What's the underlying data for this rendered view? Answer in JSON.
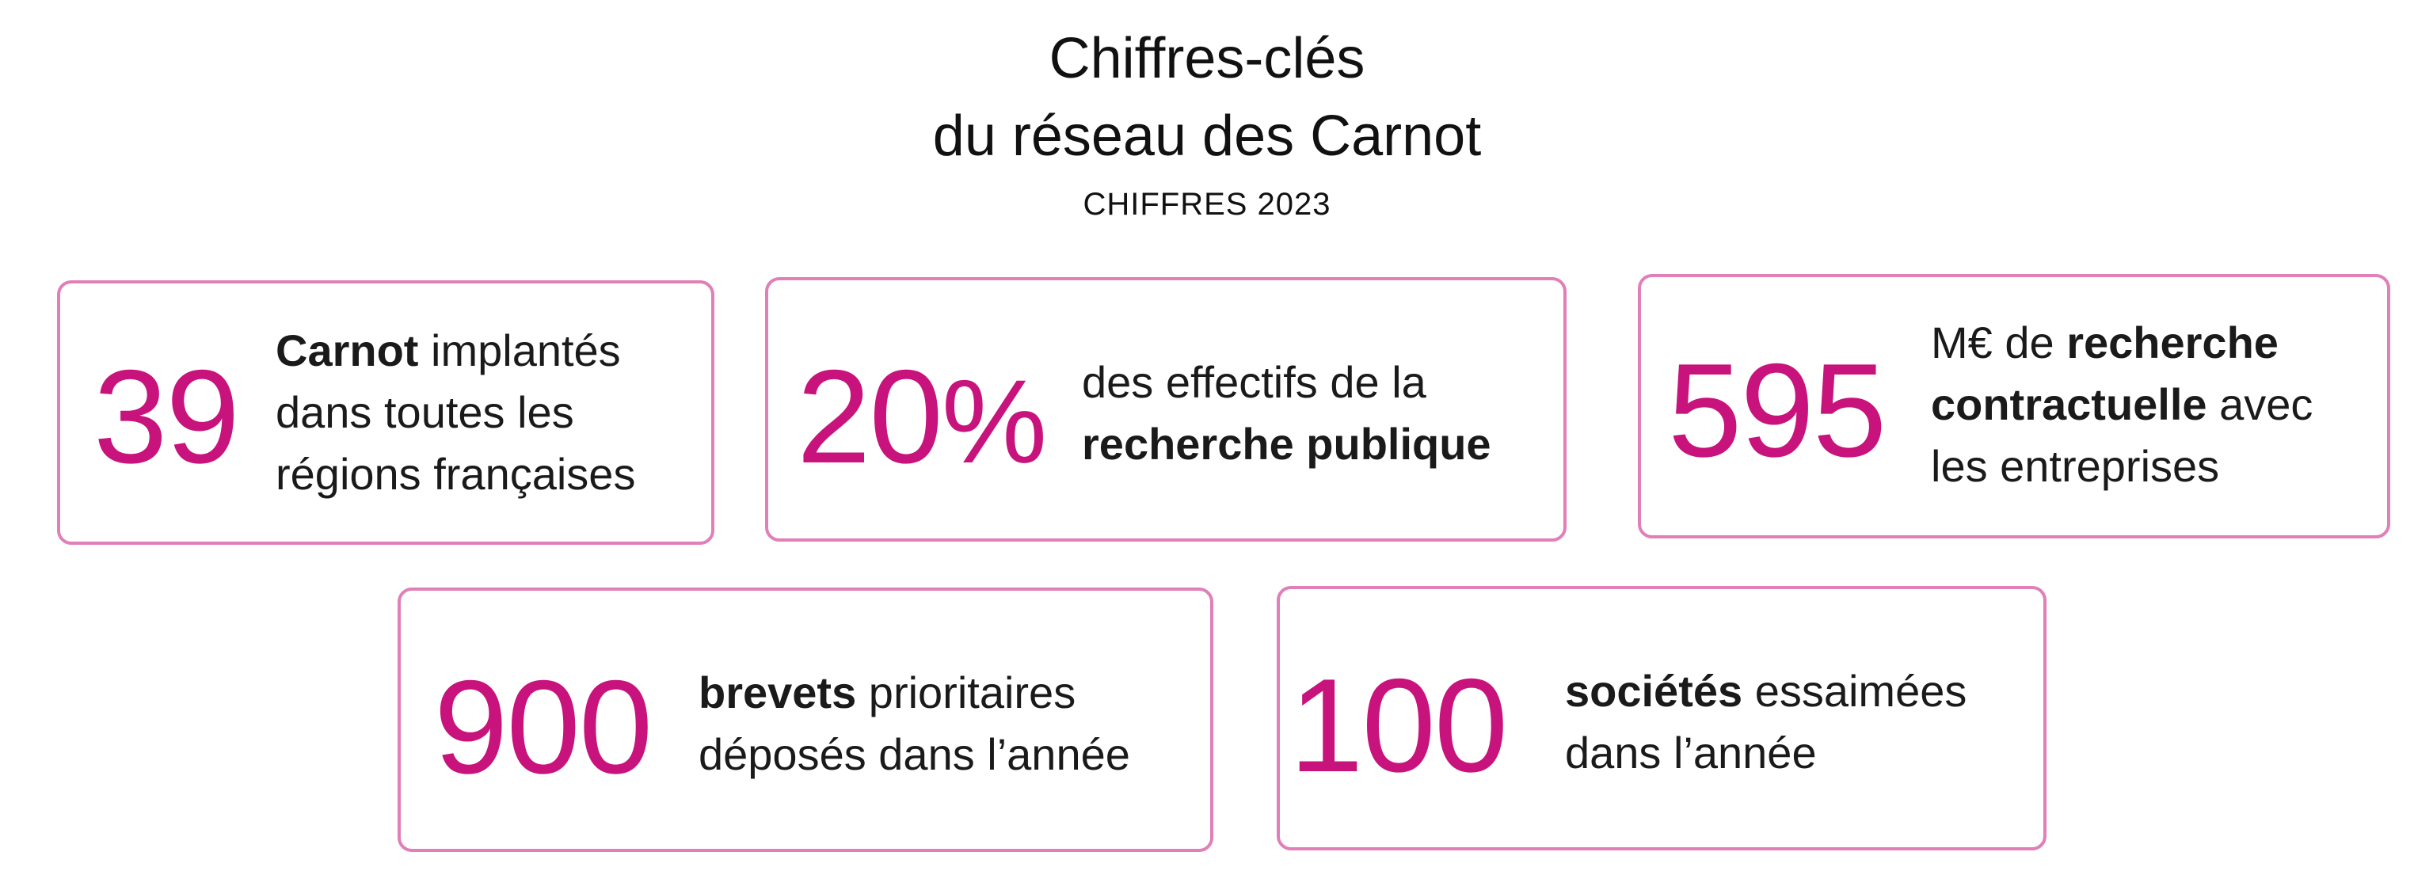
{
  "header": {
    "title_line1": "Chiffres-clés",
    "title_line2": "du réseau des Carnot",
    "subtitle": "CHIFFRES 2023"
  },
  "colors": {
    "accent": "#c8137d",
    "card_border": "#e07fb8",
    "text": "#1a1a1a"
  },
  "cards": [
    {
      "number": "39",
      "line1_bold": "Carnot",
      "line1_rest": " implantés",
      "line2": "dans toutes les",
      "line3": "régions françaises"
    },
    {
      "number": "20",
      "number_suffix": "%",
      "line1": "des effectifs de la",
      "line2_bold": "recherche publique"
    },
    {
      "number": "595",
      "line1_pre": "M€ de ",
      "line1_bold": "recherche",
      "line2_bold": "contractuelle",
      "line2_rest": " avec",
      "line3": "les entreprises"
    },
    {
      "number": "900",
      "line1_bold": "brevets",
      "line1_rest": " prioritaires",
      "line2": "déposés dans l’année"
    },
    {
      "number": "100",
      "line1_bold": "sociétés",
      "line1_rest": " essaimées",
      "line2": "dans l’année"
    }
  ]
}
